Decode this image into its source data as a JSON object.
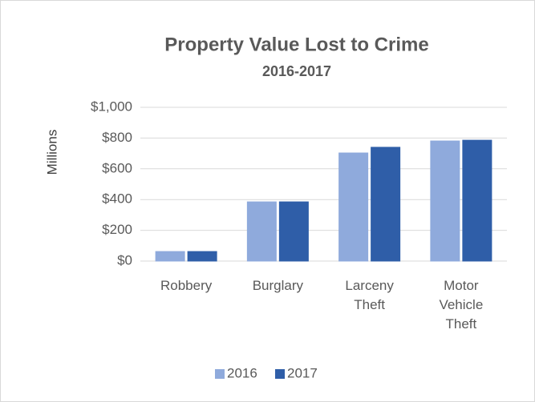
{
  "chart_data": {
    "type": "bar",
    "title": "Property Value Lost to Crime",
    "subtitle": "2016-2017",
    "ylabel": "Millions",
    "categories": [
      "Robbery",
      "Burglary",
      "Larceny Theft",
      "Motor Vehicle Theft"
    ],
    "series": [
      {
        "name": "2016",
        "color": "#8faadc",
        "values": [
          62,
          385,
          703,
          781
        ]
      },
      {
        "name": "2017",
        "color": "#2f5ea8",
        "values": [
          62,
          385,
          740,
          786
        ]
      }
    ],
    "ylim": [
      0,
      1000
    ],
    "yticks": [
      {
        "value": 0,
        "label": "$0"
      },
      {
        "value": 200,
        "label": "$200"
      },
      {
        "value": 400,
        "label": "$400"
      },
      {
        "value": 600,
        "label": "$600"
      },
      {
        "value": 800,
        "label": "$800"
      },
      {
        "value": 1000,
        "label": "$1,000"
      }
    ],
    "grid": true,
    "legend": "bottom"
  }
}
